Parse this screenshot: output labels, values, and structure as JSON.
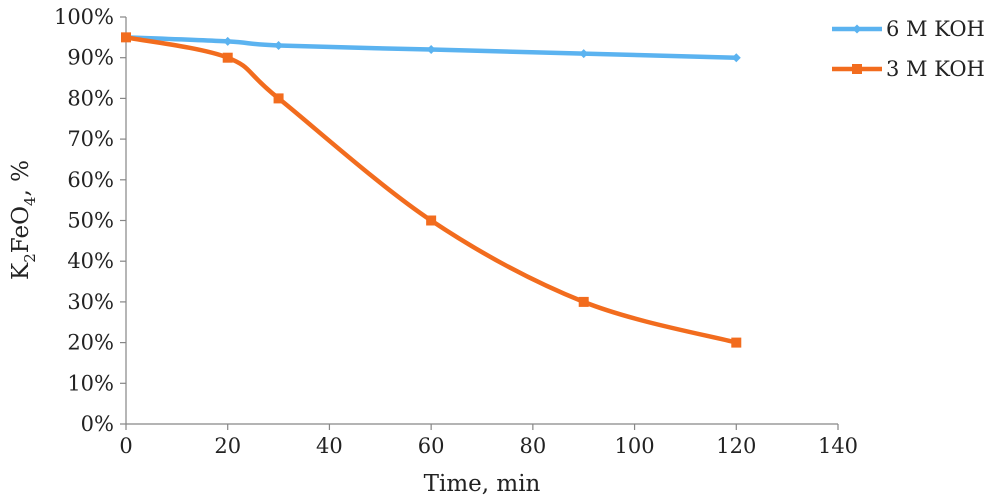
{
  "chart_data": {
    "type": "line",
    "xlabel": "Time, min",
    "ylabel": "K2FeO4, %",
    "ylabel_parts": {
      "k": "K",
      "sub1": "2",
      "mid": "FeO",
      "sub2": "4",
      "tail": ", %"
    },
    "xlim": [
      0,
      140
    ],
    "ylim": [
      0,
      100
    ],
    "x_ticks": [
      "0",
      "20",
      "40",
      "60",
      "80",
      "100",
      "120",
      "140"
    ],
    "y_ticks": [
      "0%",
      "10%",
      "20%",
      "30%",
      "40%",
      "50%",
      "60%",
      "70%",
      "80%",
      "90%",
      "100%"
    ],
    "grid": false,
    "legend_position": "top-right",
    "series": [
      {
        "name": "6 M KOH",
        "color": "#5bb3f0",
        "marker": "diamond",
        "x": [
          0,
          20,
          30,
          60,
          90,
          120
        ],
        "y": [
          95,
          94,
          93,
          92,
          91,
          90
        ]
      },
      {
        "name": "3 M KOH",
        "color": "#f26c1e",
        "marker": "square",
        "x": [
          0,
          20,
          30,
          60,
          90,
          120
        ],
        "y": [
          95,
          90,
          80,
          50,
          30,
          20
        ]
      }
    ]
  }
}
